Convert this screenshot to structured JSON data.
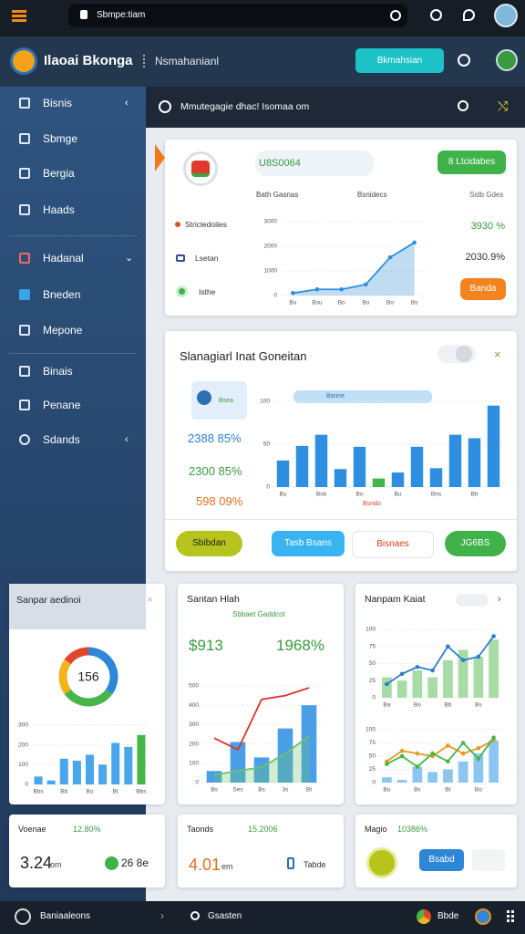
{
  "topbar": {
    "search": "Sbmpe:tiam"
  },
  "header": {
    "title": "Ilaoai Bkonga",
    "subtitle": "Nsmahanianl",
    "button": "Bkmahsian"
  },
  "sidebar": {
    "items": [
      "Bisnis",
      "Sbmge",
      "Bergia",
      "Haads",
      "Hadanal",
      "Bneden",
      "Mepone",
      "Binais",
      "Penane",
      "Sdands"
    ]
  },
  "panel": {
    "title": "Mmutegagie dhac! Isomaa om"
  },
  "overview": {
    "badge": "U8S0064",
    "button": "8 Ltcidabes",
    "columns": [
      "Bath Gasnas",
      "Bsnidecs",
      "Sidb Gdes"
    ],
    "items": [
      "Stricledoiles",
      "Lsetan",
      "Isthe"
    ],
    "stats": [
      "3930 %",
      "2030.9%"
    ],
    "action": "Banda",
    "chart": {
      "type": "area",
      "categories": [
        "Bu",
        "Bsu",
        "Bo",
        "Bo",
        "Bo",
        "Bs"
      ],
      "ylim": [
        0,
        3000
      ],
      "yticks": [
        0,
        1000,
        2000,
        3000
      ],
      "series": [
        {
          "type": "area",
          "color": "#2f8fdc",
          "markers": true,
          "values": [
            100,
            250,
            250,
            450,
            1550,
            2150
          ]
        }
      ]
    }
  },
  "analysis": {
    "title": "Slanagiarl Inat Goneitan",
    "icon_label": "Bsea",
    "legend": "Bsnne",
    "note": "Bsndo",
    "stats": [
      "2388 85%",
      "2300 85%",
      "598 09%"
    ],
    "chart": {
      "type": "bar",
      "categories": [
        "Bu",
        null,
        "Bsb",
        null,
        "Bo",
        null,
        "Bu",
        null,
        "Bns",
        null,
        "Bb",
        null
      ],
      "ylim": [
        0,
        100
      ],
      "yticks": [
        0,
        50,
        100
      ],
      "series": [
        {
          "type": "bar",
          "color": "#2e8fe0",
          "colors": [
            "#2e8fe0",
            "#2e8fe0",
            "#2e8fe0",
            "#2e8fe0",
            "#2e8fe0",
            "#43b649",
            "#2e8fe0",
            "#2e8fe0",
            "#2e8fe0",
            "#2e8fe0",
            "#2e8fe0",
            "#2e8fe0"
          ],
          "values": [
            31,
            48,
            61,
            21,
            47,
            10,
            17,
            47,
            22,
            61,
            57,
            95
          ]
        }
      ]
    },
    "buttons": [
      "Sbibdan",
      "Tasb Bsans",
      "Bisnaes",
      "JG6BS"
    ]
  },
  "cards": [
    {
      "title": "Sanpar aedinoi",
      "donut": {
        "type": "pie",
        "center": "156",
        "values": [
          35,
          30,
          20,
          15
        ],
        "colors": [
          "#2f86d6",
          "#46b649",
          "#f4b21b",
          "#e2452e"
        ]
      },
      "chart": {
        "type": "bar",
        "categories": [
          "Bbs",
          null,
          "Bb",
          null,
          "Bo",
          null,
          "Bt",
          null,
          "Bbs"
        ],
        "ylim": [
          0,
          300
        ],
        "yticks": [
          0,
          100,
          200,
          300
        ],
        "series": [
          {
            "type": "bar",
            "color": "#4aa6ea",
            "colors": [
              "#4aa6ea",
              "#4aa6ea",
              "#4aa6ea",
              "#4aa6ea",
              "#4aa6ea",
              "#4aa6ea",
              "#4aa6ea",
              "#4aa6ea",
              "#46b649"
            ],
            "values": [
              40,
              20,
              130,
              120,
              150,
              100,
              210,
              190,
              250
            ]
          }
        ]
      }
    },
    {
      "title": "Santan Hlah",
      "subtitle": "Sbbaet Gaddcot",
      "amount": "$913",
      "change": "1968%",
      "chart": {
        "type": "combo",
        "categories": [
          "Bs",
          "Ses",
          "Bs",
          "3s",
          "Bt"
        ],
        "ylim": [
          0,
          500
        ],
        "yticks": [
          0,
          100,
          200,
          300,
          400,
          500
        ],
        "series": [
          {
            "type": "bar",
            "color": "#4a9fe6",
            "values": [
              60,
              210,
              130,
              280,
              400
            ]
          },
          {
            "type": "area",
            "color": "#6cc26a",
            "values": [
              40,
              60,
              80,
              150,
              240
            ]
          },
          {
            "type": "line",
            "color": "#d9342b",
            "values": [
              230,
              170,
              430,
              450,
              490
            ]
          }
        ]
      }
    },
    {
      "title": "Nanpam Kaiat",
      "chart": {
        "type": "combo",
        "categories": [
          "Ba",
          null,
          "Bo",
          null,
          "Bb",
          null,
          "Bs",
          null
        ],
        "ylim": [
          0,
          100
        ],
        "yticks": [
          0,
          25,
          50,
          75,
          100
        ],
        "series": [
          {
            "type": "bar",
            "color": "#a8dca6",
            "values": [
              30,
              25,
              40,
              30,
              55,
              70,
              60,
              85
            ]
          },
          {
            "type": "line",
            "color": "#2b7fc9",
            "markers": true,
            "values": [
              20,
              35,
              45,
              40,
              75,
              55,
              60,
              90
            ]
          }
        ]
      },
      "chart2": {
        "type": "combo",
        "categories": [
          "Bu",
          null,
          "Bs",
          null,
          "Bt",
          null,
          "Bo",
          null
        ],
        "ylim": [
          0,
          100
        ],
        "yticks": [
          0,
          25,
          50,
          75,
          100
        ],
        "series": [
          {
            "type": "bar",
            "color": "#8cc6f0",
            "values": [
              10,
              5,
              30,
              20,
              25,
              40,
              55,
              80
            ]
          },
          {
            "type": "line",
            "color": "#e89a1f",
            "markers": true,
            "values": [
              40,
              60,
              55,
              50,
              70,
              55,
              65,
              80
            ]
          },
          {
            "type": "line",
            "color": "#43b649",
            "markers": true,
            "values": [
              35,
              50,
              30,
              55,
              40,
              75,
              45,
              85
            ]
          }
        ]
      }
    }
  ],
  "stats": [
    {
      "label": "Voenae",
      "change": "12.80%",
      "value": "3.24",
      "unit": "om",
      "extra": "26 8e"
    },
    {
      "label": "Taonds",
      "change": "15.2006",
      "value": "4.01",
      "unit": "em",
      "extra": "Tabde"
    },
    {
      "label": "Magio",
      "change": "10386%",
      "button": "Bsabd"
    }
  ],
  "bottombar": {
    "left": "Baniaaleons",
    "search": "Gsasten",
    "right": "Bbde"
  }
}
